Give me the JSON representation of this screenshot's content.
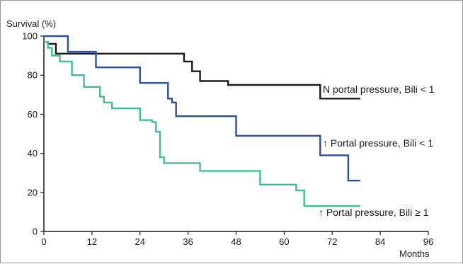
{
  "chart_data": {
    "type": "line",
    "step": true,
    "title": "",
    "xlabel": "Months",
    "ylabel": "Survival (%)",
    "xlim": [
      0,
      96
    ],
    "ylim": [
      0,
      100
    ],
    "xticks": [
      0,
      12,
      24,
      36,
      48,
      60,
      72,
      84,
      96
    ],
    "yticks": [
      0,
      20,
      40,
      60,
      80,
      100
    ],
    "grid": false,
    "legend": "none",
    "series": [
      {
        "name": "N portal pressure, Bili < 1",
        "color": "#1a1a1a",
        "x": [
          0,
          1,
          3,
          33,
          35,
          37,
          39,
          46,
          69,
          79
        ],
        "y": [
          97,
          96,
          91,
          91,
          87,
          82,
          77,
          75,
          68,
          68
        ]
      },
      {
        "name": "↑ Portal pressure, Bili < 1",
        "color": "#2e4f9e",
        "x": [
          0,
          6,
          13,
          24,
          31,
          32,
          33,
          48,
          69,
          76,
          79
        ],
        "y": [
          100,
          92,
          84,
          76,
          68,
          66,
          59,
          49,
          39,
          26,
          26
        ]
      },
      {
        "name": "↑ Portal pressure, Bili ≥ 1",
        "color": "#3dbf96",
        "x": [
          0,
          1,
          2,
          4,
          7,
          10,
          14,
          15,
          17,
          24,
          27,
          28,
          29,
          30,
          39,
          54,
          63,
          65,
          79
        ],
        "y": [
          97,
          94,
          90,
          87,
          80,
          74,
          69,
          66,
          63,
          57,
          56,
          51,
          38,
          35,
          31,
          24,
          21,
          13,
          13
        ]
      }
    ]
  }
}
